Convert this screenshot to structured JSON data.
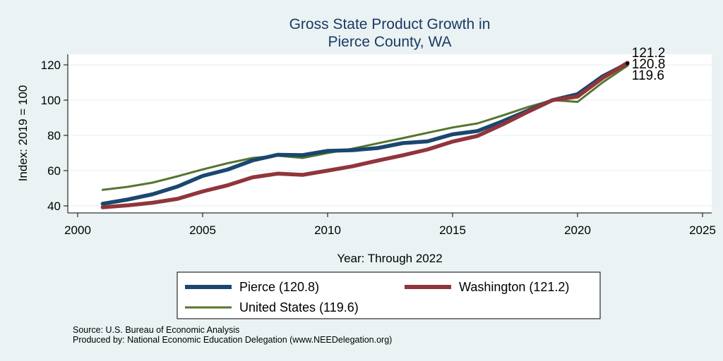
{
  "chart_data": {
    "type": "line",
    "title": [
      "Gross State Product Growth in",
      "Pierce County, WA"
    ],
    "xlabel": "Year: Through 2022",
    "ylabel": "Index: 2019 = 100",
    "xlim": [
      2000,
      2025
    ],
    "ylim": [
      36,
      126
    ],
    "xticks": [
      2000,
      2005,
      2010,
      2015,
      2020,
      2025
    ],
    "yticks": [
      40,
      60,
      80,
      100,
      120
    ],
    "grid": true,
    "legend_position": "bottom",
    "x": [
      2001,
      2002,
      2003,
      2004,
      2005,
      2006,
      2007,
      2008,
      2009,
      2010,
      2011,
      2012,
      2013,
      2014,
      2015,
      2016,
      2017,
      2018,
      2019,
      2020,
      2021,
      2022
    ],
    "series": [
      {
        "name": "Pierce  (120.8)",
        "end_label": "120.8",
        "color": "#1a476f",
        "values": [
          41.2,
          43.6,
          46.6,
          51.0,
          57.0,
          60.6,
          65.8,
          69.0,
          68.8,
          71.2,
          71.6,
          72.8,
          75.6,
          76.6,
          80.6,
          82.5,
          88.0,
          94.0,
          100.0,
          103.4,
          113.5,
          120.8
        ]
      },
      {
        "name": "Washington (121.2)",
        "end_label": "121.2",
        "color": "#90353b",
        "values": [
          39.2,
          40.3,
          41.8,
          44.0,
          48.2,
          51.7,
          56.2,
          58.3,
          57.6,
          60.0,
          62.5,
          65.7,
          68.7,
          72.0,
          76.5,
          79.7,
          86.2,
          93.3,
          100.0,
          102.0,
          112.5,
          121.2
        ]
      },
      {
        "name": "United States (119.6)",
        "end_label": "119.6",
        "color": "#55752f",
        "values": [
          49.1,
          50.8,
          53.2,
          56.8,
          60.7,
          64.2,
          67.2,
          68.5,
          67.2,
          70.0,
          72.5,
          75.5,
          78.4,
          81.5,
          84.5,
          86.8,
          91.3,
          96.0,
          100.0,
          99.0,
          110.0,
          119.6
        ]
      }
    ]
  },
  "footnotes": {
    "source": "Source: U.S. Bureau of Economic Analysis",
    "produced": "Produced by: National Economic Education Delegation (www.NEEDelegation.org)"
  }
}
